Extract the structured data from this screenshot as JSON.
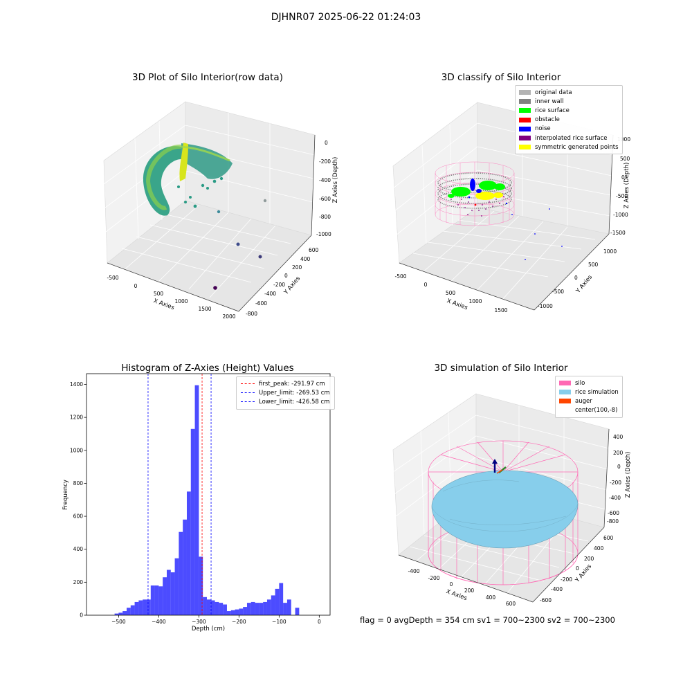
{
  "figure": {
    "suptitle": "DJHNR07 2025-06-22 01:24:03",
    "footer": "flag = 0     avgDepth = 354 cm  sv1 = 700~2300  sv2 = 700~2300"
  },
  "panels": {
    "raw": {
      "title": "3D Plot of Silo Interior(row data)",
      "xlabel": "X Axies",
      "ylabel": "Y Axies",
      "zlabel": "Z Axies (Depth)",
      "xticks": [
        "-500",
        "0",
        "500",
        "1000",
        "1500",
        "2000"
      ],
      "yticks": [
        "600",
        "400",
        "200",
        "0",
        "-200",
        "-400",
        "-600",
        "-800"
      ],
      "zticks": [
        "0",
        "-200",
        "-400",
        "-600",
        "-800",
        "-1000"
      ]
    },
    "classify": {
      "title": "3D classify of Silo Interior",
      "xlabel": "X Axies",
      "ylabel": "Y Axies",
      "zlabel": "Z Axies (Depth)",
      "xticks": [
        "-500",
        "0",
        "500",
        "1000",
        "1500"
      ],
      "yticks": [
        "1000",
        "500",
        "0",
        "-500",
        "-1000"
      ],
      "zticks": [
        "1000",
        "500",
        "0",
        "-500",
        "-1000",
        "-1500"
      ],
      "legend": [
        {
          "label": "original data",
          "color": "#b3b3b3"
        },
        {
          "label": "inner wall",
          "color": "#808080"
        },
        {
          "label": "rice surface",
          "color": "#00ff00"
        },
        {
          "label": "obstacle",
          "color": "#ff0000"
        },
        {
          "label": "noise",
          "color": "#0000ff"
        },
        {
          "label": "interpolated rice surface",
          "color": "#800080"
        },
        {
          "label": "symmetric generated points",
          "color": "#ffff00"
        }
      ]
    },
    "simulation": {
      "title": "3D simulation of Silo Interior",
      "xlabel": "X Axies",
      "ylabel": "Y Axies",
      "zlabel": "Z Axies (Depth)",
      "xticks": [
        "-400",
        "-200",
        "0",
        "200",
        "400",
        "600"
      ],
      "yticks": [
        "600",
        "400",
        "200",
        "0",
        "-200",
        "-400",
        "-600"
      ],
      "zticks": [
        "400",
        "200",
        "0",
        "-200",
        "-400",
        "-600",
        "-800"
      ],
      "legend": [
        {
          "label": "silo",
          "color": "#ff69b4"
        },
        {
          "label": "rice simulation",
          "color": "#87ceeb"
        },
        {
          "label": "auger",
          "color": "#ff4500"
        },
        {
          "label": "center(100,-8)",
          "color": "#ffffff"
        }
      ]
    }
  },
  "chart_data": [
    {
      "type": "bar",
      "title": "Histogram of Z-Axies (Height) Values",
      "xlabel": "Depth (cm)",
      "ylabel": "Frequency",
      "xlim": [
        -580,
        27
      ],
      "ylim": [
        0,
        1465
      ],
      "xticks": [
        -500,
        -400,
        -300,
        -200,
        -100,
        0
      ],
      "yticks": [
        0,
        200,
        400,
        600,
        800,
        1000,
        1200,
        1400
      ],
      "bin_width": 10,
      "bin_starts": [
        -510,
        -500,
        -490,
        -480,
        -470,
        -460,
        -450,
        -440,
        -430,
        -420,
        -410,
        -400,
        -390,
        -380,
        -370,
        -360,
        -350,
        -340,
        -330,
        -320,
        -310,
        -300,
        -290,
        -280,
        -270,
        -260,
        -250,
        -240,
        -230,
        -220,
        -210,
        -200,
        -190,
        -180,
        -170,
        -160,
        -150,
        -140,
        -130,
        -120,
        -110,
        -100,
        -90,
        -80,
        -70,
        -60,
        -50,
        -40,
        -30,
        -20,
        -10,
        0
      ],
      "counts": [
        10,
        15,
        25,
        45,
        60,
        80,
        90,
        95,
        95,
        180,
        180,
        175,
        230,
        275,
        260,
        345,
        505,
        580,
        750,
        1130,
        1395,
        355,
        110,
        95,
        90,
        80,
        75,
        65,
        25,
        30,
        35,
        40,
        50,
        75,
        80,
        75,
        75,
        80,
        95,
        120,
        160,
        195,
        75,
        95,
        0,
        45,
        0,
        0,
        0,
        0,
        0,
        0
      ],
      "bar_color": "#0000ff",
      "vlines": [
        {
          "label": "first_peak: -291.97 cm",
          "value": -291.97,
          "color": "#ff0000"
        },
        {
          "label": "Upper_limit: -269.53 cm",
          "value": -269.53,
          "color": "#0000ff"
        },
        {
          "label": "Lower_limit: -426.58 cm",
          "value": -426.58,
          "color": "#0000ff"
        }
      ],
      "legend_position": "top-right"
    }
  ]
}
